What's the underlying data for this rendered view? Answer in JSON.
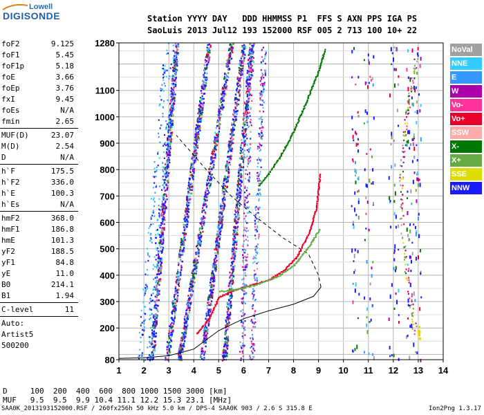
{
  "logo": {
    "brand_top": "Lowell",
    "brand_main": "DIGISONDE"
  },
  "header": {
    "line1": "Station YYYY DAY   DDD HHMMSS P1  FFS S AXN PPS IGA PS",
    "line2": "SaoLuis 2013 Jul12 193 152000 RSF 005 2 713 100 10+ 22"
  },
  "parameters": {
    "group1": [
      {
        "name": "foF2",
        "value": "9.125"
      },
      {
        "name": "foF1",
        "value": "5.45"
      },
      {
        "name": "foF1p",
        "value": "5.18"
      },
      {
        "name": "foE",
        "value": "3.66"
      },
      {
        "name": "foEp",
        "value": "3.76"
      },
      {
        "name": "fxI",
        "value": "9.45"
      },
      {
        "name": "foEs",
        "value": "N/A"
      },
      {
        "name": "fmin",
        "value": "2.65"
      }
    ],
    "group2": [
      {
        "name": "MUF(D)",
        "value": "23.07"
      },
      {
        "name": "M(D)",
        "value": "2.54"
      },
      {
        "name": "D",
        "value": "N/A"
      }
    ],
    "group3": [
      {
        "name": "h`F",
        "value": "175.5"
      },
      {
        "name": "h`F2",
        "value": "336.0"
      },
      {
        "name": "h`E",
        "value": "100.3"
      },
      {
        "name": "h`Es",
        "value": "N/A"
      }
    ],
    "group4": [
      {
        "name": "hmF2",
        "value": "368.0"
      },
      {
        "name": "hmF1",
        "value": "186.8"
      },
      {
        "name": "hmE",
        "value": "101.3"
      },
      {
        "name": "yF2",
        "value": "188.5"
      },
      {
        "name": "yF1",
        "value": "84.8"
      },
      {
        "name": "yE",
        "value": "11.0"
      },
      {
        "name": "B0",
        "value": "214.1"
      },
      {
        "name": "B1",
        "value": "1.94"
      }
    ],
    "clevel": {
      "name": "C-level",
      "value": "11"
    },
    "auto_lines": [
      "Auto:",
      "Artist5",
      "500200"
    ]
  },
  "legend": [
    {
      "label": "NoVal",
      "color": "#a0a0a0"
    },
    {
      "label": "NNE",
      "color": "#33ccff"
    },
    {
      "label": "E",
      "color": "#3399ff"
    },
    {
      "label": "W",
      "color": "#aa00aa"
    },
    {
      "label": "Vo-",
      "color": "#ff3399"
    },
    {
      "label": "Vo+",
      "color": "#e8002a"
    },
    {
      "label": "SSW",
      "color": "#ffaaaa"
    },
    {
      "label": "X-",
      "color": "#007700"
    },
    {
      "label": "X+",
      "color": "#66aa44"
    },
    {
      "label": "SSE",
      "color": "#dddd00"
    },
    {
      "label": "NNW",
      "color": "#1a1aff"
    }
  ],
  "footer": {
    "line1": "D     100  200  400  600  800 1000 1500 3000 [km]",
    "line2": "MUF   9.5  9.5  9.9 10.4 11.1 12.2 15.3 23.1 [MHz]",
    "line3": "SAA0K_2013193152000.RSF / 260fx256h 50 kHz 5.0 km / DPS-4 SAA0K 903 / 2.6 S 315.8 E",
    "line4": "Ion2Png 1.3.17"
  },
  "chart_data": {
    "type": "scatter",
    "title": "",
    "xlabel": "",
    "ylabel": "",
    "xlim": [
      1,
      14
    ],
    "ylim": [
      80,
      1280
    ],
    "x_ticks": [
      1,
      2,
      3,
      4,
      5,
      6,
      7,
      8,
      9,
      10,
      11,
      12,
      13,
      14
    ],
    "y_ticks": [
      80,
      200,
      300,
      400,
      500,
      600,
      700,
      800,
      900,
      1000,
      1100,
      1280
    ],
    "grid": true,
    "series": [
      {
        "name": "X-",
        "color": "#007700",
        "style": "trace",
        "points": [
          [
            6.6,
            740
          ],
          [
            7.0,
            790
          ],
          [
            7.5,
            860
          ],
          [
            8.0,
            950
          ],
          [
            8.5,
            1060
          ],
          [
            9.0,
            1180
          ],
          [
            9.25,
            1260
          ]
        ]
      },
      {
        "name": "Vo+",
        "color": "#e8002a",
        "style": "trace",
        "points": [
          [
            4.1,
            180
          ],
          [
            4.6,
            240
          ],
          [
            5.0,
            320
          ],
          [
            5.6,
            345
          ],
          [
            6.3,
            365
          ],
          [
            7.0,
            385
          ],
          [
            7.6,
            420
          ],
          [
            8.1,
            470
          ],
          [
            8.6,
            560
          ],
          [
            8.9,
            660
          ],
          [
            9.05,
            790
          ]
        ]
      },
      {
        "name": "X+",
        "color": "#66aa44",
        "style": "trace",
        "points": [
          [
            5.0,
            340
          ],
          [
            5.8,
            350
          ],
          [
            6.6,
            370
          ],
          [
            7.4,
            400
          ],
          [
            8.0,
            440
          ],
          [
            8.6,
            510
          ],
          [
            9.05,
            580
          ]
        ]
      },
      {
        "name": "NNW",
        "color": "#1a1aff",
        "style": "bands",
        "bands": [
          [
            2.3,
            3.3
          ],
          [
            2.9,
            4.6
          ],
          [
            3.4,
            5.5
          ],
          [
            4.3,
            6.0
          ],
          [
            5.2,
            6.3
          ]
        ]
      }
    ],
    "model_curves": [
      {
        "style": "solid",
        "points": [
          [
            1.0,
            85
          ],
          [
            2.0,
            87
          ],
          [
            3.0,
            95
          ],
          [
            4.0,
            120
          ],
          [
            5.0,
            190
          ],
          [
            6.0,
            235
          ],
          [
            7.0,
            265
          ],
          [
            8.0,
            290
          ],
          [
            8.8,
            320
          ],
          [
            9.1,
            355
          ]
        ]
      },
      {
        "style": "dashed",
        "points": [
          [
            9.1,
            355
          ],
          [
            9.0,
            400
          ],
          [
            8.6,
            480
          ],
          [
            7.6,
            540
          ],
          [
            6.5,
            620
          ],
          [
            5.5,
            700
          ],
          [
            4.5,
            800
          ],
          [
            3.3,
            930
          ]
        ]
      }
    ]
  }
}
